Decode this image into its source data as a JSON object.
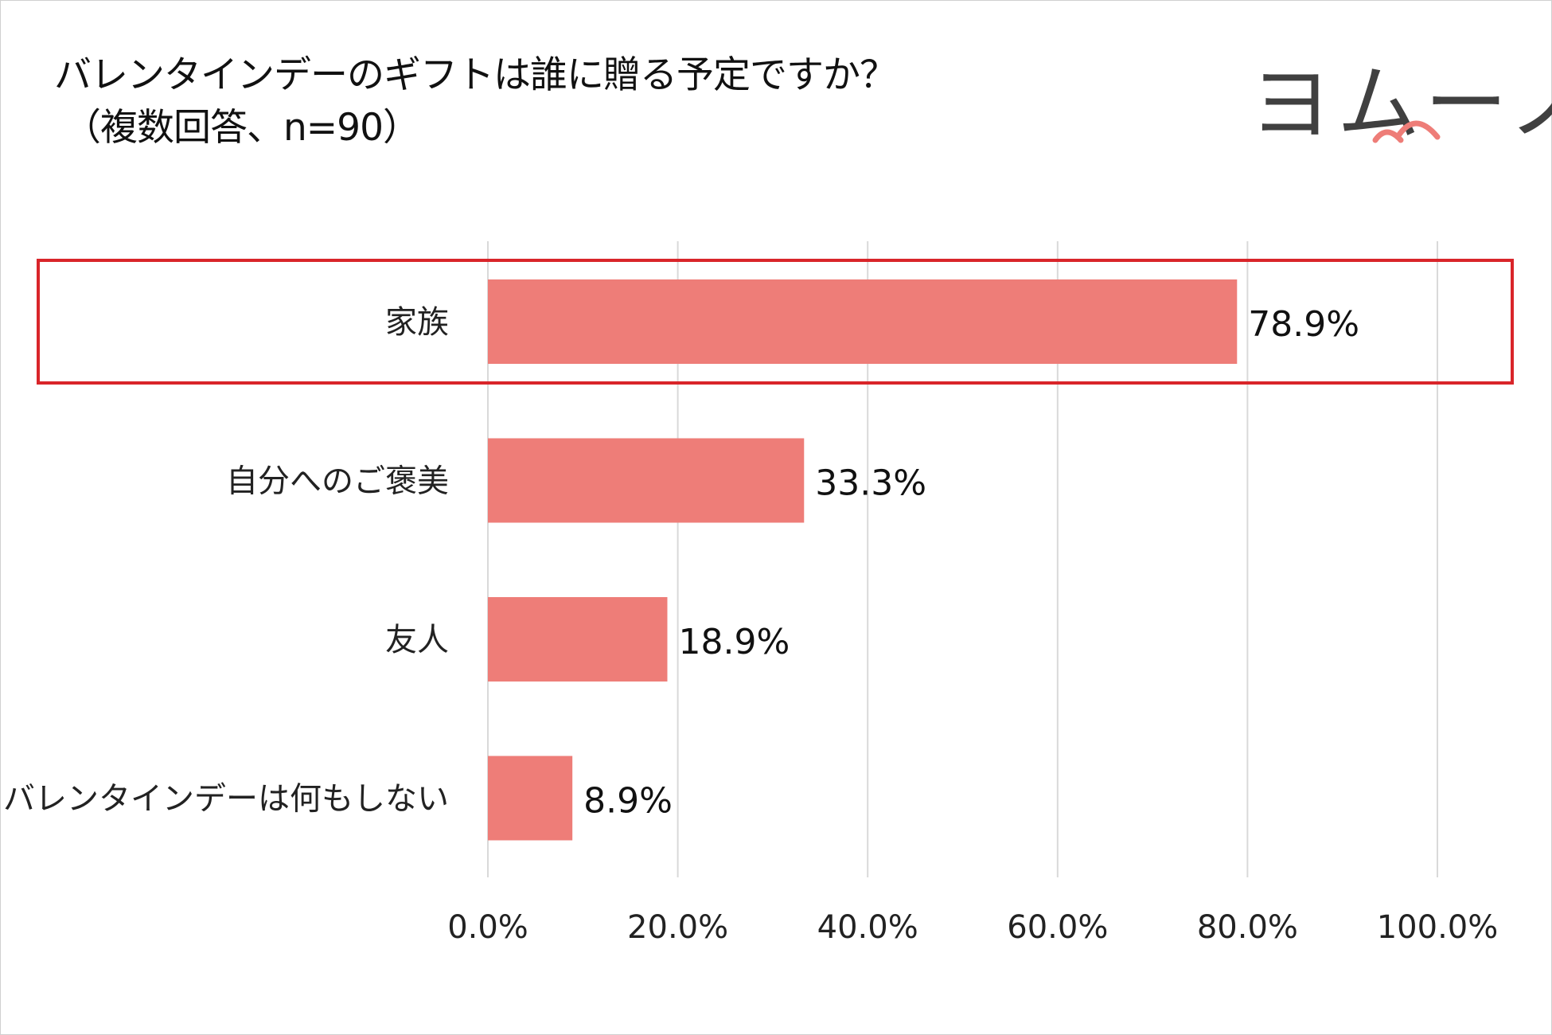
{
  "header": {
    "title": "バレンタインデーのギフトは誰に贈る予定ですか？",
    "subtitle": "（複数回答、n=90）"
  },
  "logo": {
    "text": "ヨムーノ",
    "brand_color": "#404040",
    "accent_color": "#ee7d78"
  },
  "chart_data": {
    "type": "bar",
    "orientation": "horizontal",
    "title": "バレンタインデーのギフトは誰に贈る予定ですか？（複数回答、n=90）",
    "categories": [
      "家族",
      "自分へのご褒美",
      "友人",
      "バレンタインデーは何もしない"
    ],
    "values": [
      78.9,
      33.3,
      18.9,
      8.9
    ],
    "value_labels": [
      "78.9%",
      "33.3%",
      "18.9%",
      "8.9%"
    ],
    "xlim": [
      0,
      100
    ],
    "xticks": [
      0,
      20,
      40,
      60,
      80,
      100
    ],
    "xtick_labels": [
      "0.0%",
      "20.0%",
      "40.0%",
      "60.0%",
      "80.0%",
      "100.0%"
    ],
    "grid": "vertical",
    "highlighted_category": "家族",
    "bar_color": "#ee7d78",
    "highlight_color": "#d9252a",
    "grid_color": "#d9d9d9"
  }
}
